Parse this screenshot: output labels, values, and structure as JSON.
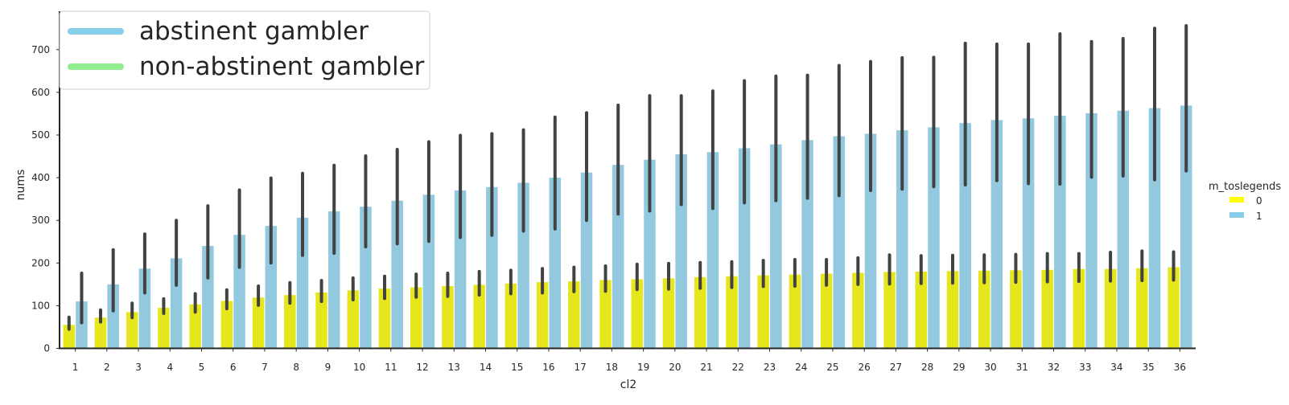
{
  "chart_data": {
    "type": "bar",
    "xlabel": "cl2",
    "ylabel": "nums",
    "ylim": [
      0,
      790
    ],
    "yticks": [
      0,
      100,
      200,
      300,
      400,
      500,
      600,
      700
    ],
    "grid": false,
    "categories": [
      "1",
      "2",
      "3",
      "4",
      "5",
      "6",
      "7",
      "8",
      "9",
      "10",
      "11",
      "12",
      "13",
      "14",
      "15",
      "16",
      "17",
      "18",
      "19",
      "20",
      "21",
      "22",
      "23",
      "24",
      "25",
      "26",
      "27",
      "28",
      "29",
      "30",
      "31",
      "32",
      "33",
      "34",
      "35",
      "36"
    ],
    "series": [
      {
        "name": "0",
        "color": "#ffff00",
        "values": [
          55,
          72,
          85,
          95,
          103,
          111,
          119,
          125,
          131,
          136,
          140,
          143,
          146,
          149,
          152,
          155,
          157,
          160,
          162,
          164,
          167,
          169,
          171,
          173,
          175,
          177,
          179,
          180,
          181,
          182,
          183,
          184,
          186,
          186,
          188,
          190
        ],
        "err_low": [
          45,
          62,
          72,
          82,
          85,
          93,
          101,
          106,
          110,
          114,
          117,
          120,
          122,
          125,
          128,
          130,
          133,
          134,
          138,
          139,
          141,
          143,
          145,
          146,
          148,
          150,
          151,
          152,
          153,
          154,
          155,
          156,
          157,
          158,
          159,
          160
        ],
        "err_high": [
          73,
          90,
          106,
          116,
          128,
          137,
          146,
          154,
          159,
          165,
          169,
          174,
          176,
          180,
          183,
          187,
          190,
          193,
          197,
          199,
          201,
          203,
          206,
          208,
          208,
          212,
          219,
          217,
          218,
          219,
          220,
          222,
          222,
          225,
          228,
          226
        ]
      },
      {
        "name": "1",
        "color": "#87ceeb",
        "values": [
          110,
          150,
          187,
          211,
          240,
          266,
          287,
          306,
          321,
          332,
          346,
          360,
          370,
          378,
          388,
          400,
          412,
          430,
          442,
          455,
          460,
          469,
          478,
          488,
          497,
          503,
          511,
          518,
          528,
          535,
          539,
          545,
          551,
          557,
          563,
          569
        ],
        "err_low": [
          60,
          88,
          130,
          148,
          165,
          190,
          200,
          218,
          223,
          238,
          245,
          251,
          260,
          265,
          275,
          280,
          300,
          315,
          322,
          337,
          328,
          341,
          346,
          352,
          358,
          370,
          373,
          379,
          383,
          393,
          386,
          385,
          401,
          404,
          395,
          416
        ],
        "err_high": [
          176,
          231,
          268,
          300,
          334,
          371,
          399,
          410,
          429,
          451,
          466,
          484,
          499,
          503,
          512,
          542,
          552,
          570,
          592,
          592,
          603,
          627,
          638,
          640,
          663,
          672,
          681,
          682,
          715,
          713,
          713,
          737,
          719,
          726,
          750,
          756
        ]
      }
    ],
    "legend_inset": {
      "placement": "top-left",
      "entries": [
        {
          "label": "abstinent gambler",
          "color": "#87ceeb"
        },
        {
          "label": "non-abstinent gambler",
          "color": "#90ee90"
        }
      ]
    },
    "legend_outside": {
      "placement": "right",
      "title": "m_toslegends",
      "entries": [
        {
          "label": "0",
          "color": "#ffff00"
        },
        {
          "label": "1",
          "color": "#87ceeb"
        }
      ]
    }
  }
}
